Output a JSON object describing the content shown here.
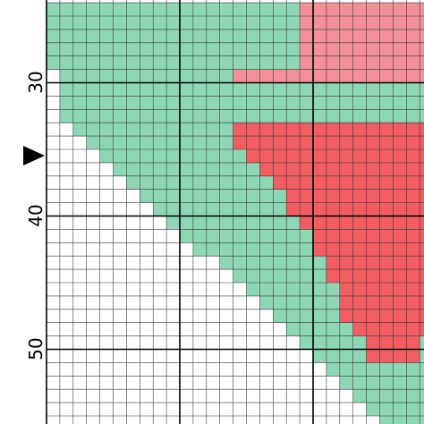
{
  "pattern": {
    "row_labels": [
      "30",
      "40",
      "50"
    ],
    "marker_row": 35,
    "colors": {
      "background": "#ffffff",
      "green": "#8dd7b5",
      "pink": "#f49097",
      "red": "#f15d61",
      "grid_minor": "#3a3a3a",
      "grid_major": "#000000"
    },
    "icons": {
      "row_marker": "triangle-right-icon"
    }
  }
}
